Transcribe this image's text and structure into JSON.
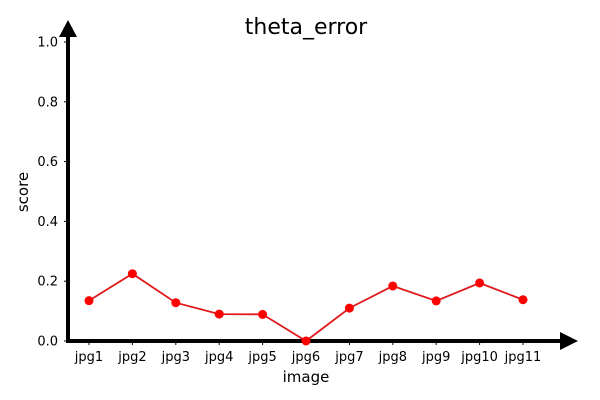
{
  "chart_data": {
    "type": "line",
    "title": "theta_error",
    "xlabel": "image",
    "ylabel": "score",
    "categories": [
      "jpg1",
      "jpg2",
      "jpg3",
      "jpg4",
      "jpg5",
      "jpg6",
      "jpg7",
      "jpg8",
      "jpg9",
      "jpg10",
      "jpg11"
    ],
    "series": [
      {
        "values": [
          0.135,
          0.225,
          0.128,
          0.09,
          0.089,
          0.0,
          0.11,
          0.184,
          0.134,
          0.194,
          0.138
        ],
        "color": "#ff0000",
        "line_color": "#e0191c"
      }
    ],
    "ylim": [
      0,
      1.0
    ],
    "yticks": [
      "0.0",
      "0.2",
      "0.4",
      "0.6",
      "0.8",
      "1.0"
    ],
    "grid": false,
    "axis_color": "#000000"
  }
}
